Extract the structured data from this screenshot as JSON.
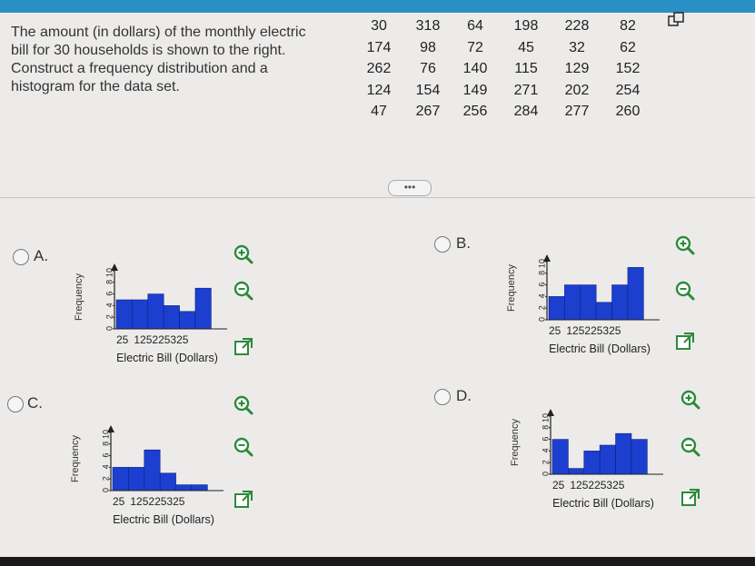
{
  "question": {
    "lines": [
      "The amount (in dollars) of the monthly electric",
      "bill for 30 households is shown to the right.",
      "Construct a frequency distribution and a",
      "histogram for the data set."
    ]
  },
  "data_table": {
    "rows": [
      [
        "30",
        "318",
        "64",
        "198",
        "228",
        "82"
      ],
      [
        "174",
        "98",
        "72",
        "45",
        "32",
        "62"
      ],
      [
        "262",
        "76",
        "140",
        "115",
        "129",
        "152"
      ],
      [
        "124",
        "154",
        "149",
        "271",
        "202",
        "254"
      ],
      [
        "47",
        "267",
        "256",
        "284",
        "277",
        "260"
      ]
    ]
  },
  "more_button": {
    "label": "•••"
  },
  "options": [
    {
      "letter": "A.",
      "chart_data": {
        "type": "bar",
        "categories": [
          "25",
          "75",
          "125",
          "175",
          "225",
          "275",
          "325"
        ],
        "values": [
          5,
          5,
          6,
          4,
          3,
          7,
          0
        ],
        "xlabel": "Electric Bill (Dollars)",
        "ylabel": "Frequency",
        "ylim": [
          0,
          10
        ],
        "x_ticks": [
          "25",
          "125",
          "225",
          "325"
        ],
        "y_ticks": [
          "10",
          "8",
          "6",
          "4",
          "2",
          "0"
        ],
        "color": "#1c3fcf"
      }
    },
    {
      "letter": "B.",
      "chart_data": {
        "type": "bar",
        "categories": [
          "25",
          "75",
          "125",
          "175",
          "225",
          "275",
          "325"
        ],
        "values": [
          4,
          6,
          6,
          3,
          6,
          9,
          0
        ],
        "xlabel": "Electric Bill (Dollars)",
        "ylabel": "Frequency",
        "ylim": [
          0,
          10
        ],
        "x_ticks": [
          "25",
          "125",
          "225",
          "325"
        ],
        "y_ticks": [
          "10",
          "8",
          "6",
          "4",
          "2",
          "0"
        ],
        "color": "#1c3fcf"
      }
    },
    {
      "letter": "C.",
      "chart_data": {
        "type": "bar",
        "categories": [
          "25",
          "75",
          "125",
          "175",
          "225",
          "275",
          "325"
        ],
        "values": [
          4,
          4,
          7,
          3,
          1,
          1,
          0
        ],
        "xlabel": "Electric Bill (Dollars)",
        "ylabel": "Frequency",
        "ylim": [
          0,
          10
        ],
        "x_ticks": [
          "25",
          "125",
          "225",
          "325"
        ],
        "y_ticks": [
          "10",
          "8",
          "6",
          "4",
          "2",
          "0"
        ],
        "color": "#1c3fcf"
      }
    },
    {
      "letter": "D.",
      "chart_data": {
        "type": "bar",
        "categories": [
          "25",
          "75",
          "125",
          "175",
          "225",
          "275",
          "325"
        ],
        "values": [
          6,
          1,
          4,
          5,
          7,
          6,
          0
        ],
        "xlabel": "Electric Bill (Dollars)",
        "ylabel": "Frequency",
        "ylim": [
          0,
          10
        ],
        "x_ticks": [
          "25",
          "125",
          "225",
          "325"
        ],
        "y_ticks": [
          "10",
          "8",
          "6",
          "4",
          "2",
          "0"
        ],
        "color": "#1c3fcf"
      }
    }
  ],
  "colors": {
    "accent": "#2a8fc4",
    "bar": "#1c3fcf",
    "icon": "#2c8a3a"
  },
  "icons": [
    "zoom-in-icon",
    "zoom-out-icon",
    "external-link-icon",
    "copy-icon"
  ]
}
